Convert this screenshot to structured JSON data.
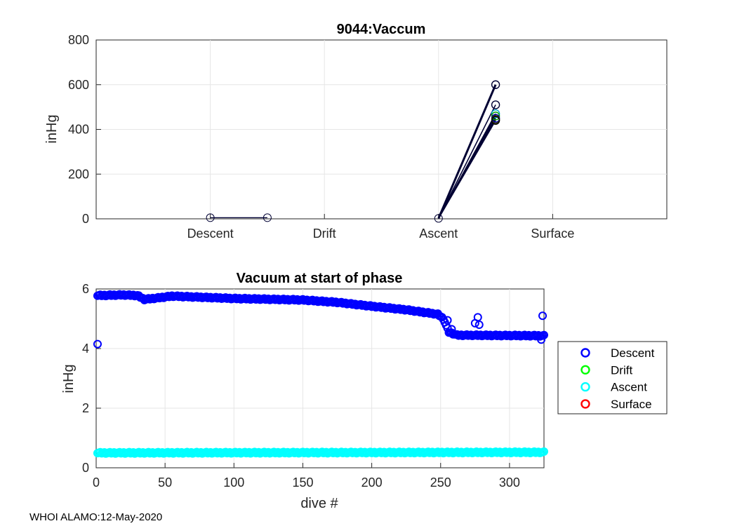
{
  "footer": "WHOI ALAMO:12-May-2020",
  "chart_data": [
    {
      "type": "line",
      "title": "9044:Vaccum",
      "xlabel": "",
      "ylabel": "inHg",
      "categories": [
        "Descent",
        "Drift",
        "Ascent",
        "Surface"
      ],
      "ylim": [
        0,
        800
      ],
      "yticks": [
        0,
        200,
        400,
        600,
        800
      ],
      "grid": true,
      "descent_segment": {
        "from": 5,
        "to": 5
      },
      "ascent_segments": [
        {
          "from": 2,
          "to": 600
        },
        {
          "from": 2,
          "to": 510
        },
        {
          "from": 2,
          "to": 470
        },
        {
          "from": 2,
          "to": 460
        },
        {
          "from": 2,
          "to": 450
        },
        {
          "from": 2,
          "to": 445
        },
        {
          "from": 2,
          "to": 440
        }
      ]
    },
    {
      "type": "scatter",
      "title": "Vacuum at start of phase",
      "xlabel": "dive #",
      "ylabel": "inHg",
      "xlim": [
        0,
        325
      ],
      "ylim": [
        0,
        6
      ],
      "xticks": [
        0,
        50,
        100,
        150,
        200,
        250,
        300
      ],
      "yticks": [
        0,
        2,
        4,
        6
      ],
      "grid": true,
      "legend": {
        "placement": "outside-right",
        "entries": [
          "Descent",
          "Drift",
          "Ascent",
          "Surface"
        ]
      },
      "series": [
        {
          "name": "Descent",
          "color": "#0000ff",
          "trend": [
            [
              1,
              5.78
            ],
            [
              20,
              5.8
            ],
            [
              30,
              5.78
            ],
            [
              35,
              5.65
            ],
            [
              45,
              5.7
            ],
            [
              55,
              5.76
            ],
            [
              100,
              5.68
            ],
            [
              150,
              5.63
            ],
            [
              175,
              5.55
            ],
            [
              200,
              5.42
            ],
            [
              225,
              5.3
            ],
            [
              248,
              5.15
            ],
            [
              252,
              5.0
            ],
            [
              256,
              4.55
            ],
            [
              262,
              4.45
            ],
            [
              325,
              4.43
            ]
          ],
          "outliers": [
            [
              1,
              4.15
            ],
            [
              255,
              4.95
            ],
            [
              258,
              4.65
            ],
            [
              275,
              4.85
            ],
            [
              277,
              5.05
            ],
            [
              278,
              4.8
            ],
            [
              323,
              4.3
            ],
            [
              324,
              5.1
            ]
          ]
        },
        {
          "name": "Drift",
          "color": "#00ff00",
          "trend": [],
          "outliers": []
        },
        {
          "name": "Ascent",
          "color": "#00ffff",
          "trend": [
            [
              1,
              0.5
            ],
            [
              325,
              0.52
            ]
          ],
          "outliers": []
        },
        {
          "name": "Surface",
          "color": "#ff0000",
          "trend": [],
          "outliers": []
        }
      ]
    }
  ]
}
